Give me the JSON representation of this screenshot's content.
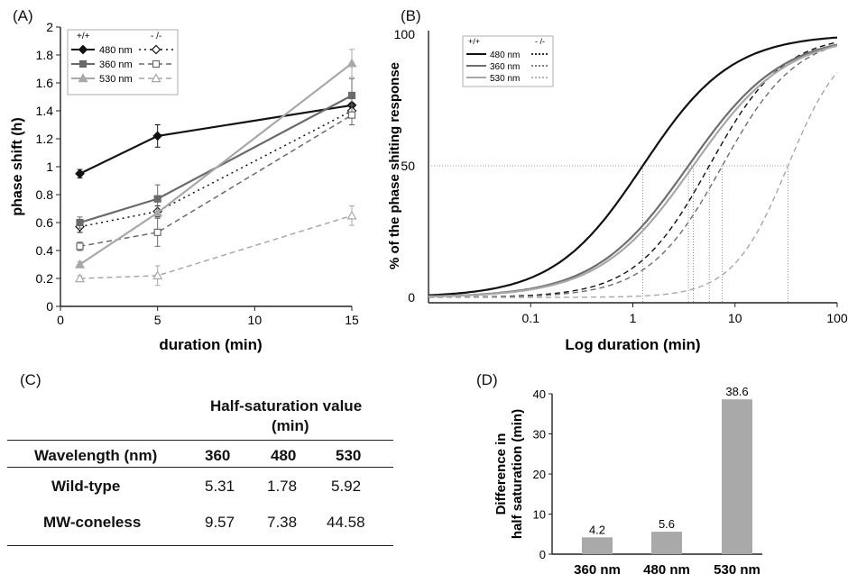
{
  "panels": {
    "a": "(A)",
    "b": "(B)",
    "c": "(C)",
    "d": "(D)"
  },
  "chart_data": [
    {
      "type": "line",
      "xlabel": "duration (min)",
      "ylabel": "phase shift (h)",
      "xlim": [
        0,
        15
      ],
      "ylim": [
        0,
        2
      ],
      "xticks": [
        "0",
        "5",
        "10",
        "15"
      ],
      "yticks": [
        "0",
        "0.2",
        "0.4",
        "0.6",
        "0.8",
        "1",
        "1.2",
        "1.4",
        "1.6",
        "1.8",
        "2"
      ],
      "x": [
        1,
        5,
        15
      ],
      "legend": {
        "header_wt": "+/+",
        "header_ko": "- /-",
        "placement": "top-left"
      },
      "series": [
        {
          "name": "480 nm",
          "genotype": "+/+",
          "color": "#111111",
          "line": "solid",
          "marker": "diamond-filled",
          "values": [
            0.95,
            1.22,
            1.44
          ],
          "errors": [
            0.03,
            0.08,
            0.05
          ]
        },
        {
          "name": "480 nm",
          "genotype": "-/-",
          "color": "#111111",
          "line": "dotted",
          "marker": "diamond-open",
          "values": [
            0.57,
            0.68,
            1.4
          ],
          "errors": [
            0.04,
            0.04,
            0.04
          ]
        },
        {
          "name": "360 nm",
          "genotype": "+/+",
          "color": "#6a6a6a",
          "line": "solid",
          "marker": "square-filled",
          "values": [
            0.6,
            0.77,
            1.51
          ],
          "errors": [
            0.04,
            0.1,
            0.12
          ]
        },
        {
          "name": "360 nm",
          "genotype": "-/-",
          "color": "#6a6a6a",
          "line": "dashed",
          "marker": "square-open",
          "values": [
            0.43,
            0.53,
            1.37
          ],
          "errors": [
            0.03,
            0.1,
            0.07
          ]
        },
        {
          "name": "530 nm",
          "genotype": "+/+",
          "color": "#a8a8a8",
          "line": "solid",
          "marker": "triangle-filled",
          "values": [
            0.3,
            0.67,
            1.74
          ],
          "errors": [
            0.02,
            0.02,
            0.1
          ]
        },
        {
          "name": "530 nm",
          "genotype": "-/-",
          "color": "#a8a8a8",
          "line": "dashed",
          "marker": "triangle-open",
          "values": [
            0.2,
            0.22,
            0.65
          ],
          "errors": [
            0.02,
            0.07,
            0.07
          ]
        }
      ]
    },
    {
      "type": "line",
      "xlabel": "Log duration (min)",
      "ylabel": "% of the phase shiting response",
      "xscale": "log",
      "xlim": [
        0.01,
        100
      ],
      "ylim": [
        0,
        100
      ],
      "xticks": [
        "0.1",
        "1",
        "10",
        "100"
      ],
      "yticks": [
        "0",
        "50",
        "100"
      ],
      "legend": {
        "header_wt": "+/+",
        "header_ko": "- /-",
        "placement": "top-left"
      },
      "half_line": 50,
      "series": [
        {
          "name": "480 nm",
          "genotype": "+/+",
          "color": "#111111",
          "line": "solid",
          "half_saturation": 1.25,
          "hill": 1.0
        },
        {
          "name": "480 nm",
          "genotype": "-/-",
          "color": "#111111",
          "line": "dashed",
          "half_saturation": 5.6,
          "hill": 1.2
        },
        {
          "name": "360 nm",
          "genotype": "+/+",
          "color": "#6e6e6e",
          "line": "solid",
          "half_saturation": 3.5,
          "hill": 0.95
        },
        {
          "name": "360 nm",
          "genotype": "-/-",
          "color": "#6e6e6e",
          "line": "dashed",
          "half_saturation": 7.5,
          "hill": 1.2
        },
        {
          "name": "530 nm",
          "genotype": "+/+",
          "color": "#a8a8a8",
          "line": "solid",
          "half_saturation": 3.9,
          "hill": 0.95
        },
        {
          "name": "530 nm",
          "genotype": "-/-",
          "color": "#a8a8a8",
          "line": "dashed",
          "half_saturation": 33,
          "hill": 1.6
        }
      ]
    },
    {
      "type": "bar",
      "categories": [
        "360 nm",
        "480 nm",
        "530 nm"
      ],
      "values": [
        4.2,
        5.6,
        38.6
      ],
      "value_labels": [
        "4.2",
        "5.6",
        "38.6"
      ],
      "ylabel_line1": "Difference in",
      "ylabel_line2": "half saturation (min)",
      "ylim": [
        0,
        40
      ],
      "yticks": [
        "0",
        "10",
        "20",
        "30",
        "40"
      ],
      "bar_color": "#a9a9a9"
    }
  ],
  "table": {
    "title_line1": "Half-saturation value",
    "title_line2": "(min)",
    "header": [
      "Wavelength (nm)",
      "360",
      "480",
      "530"
    ],
    "rows": [
      [
        "Wild-type",
        "5.31",
        "1.78",
        "5.92"
      ],
      [
        "MW-coneless",
        "9.57",
        "7.38",
        "44.58"
      ]
    ]
  }
}
